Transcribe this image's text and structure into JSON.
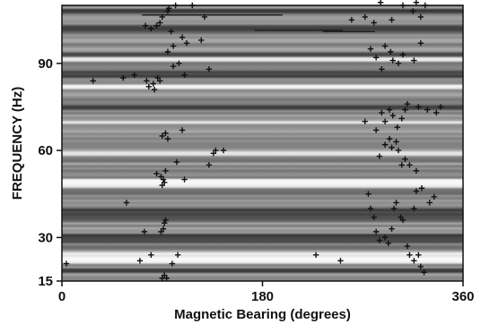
{
  "chart_data": {
    "type": "scatter",
    "xlabel": "Magnetic Bearing (degrees)",
    "ylabel": "FREQUENCY (Hz)",
    "xlim": [
      0,
      360
    ],
    "ylim": [
      15,
      110
    ],
    "xticks": [
      0,
      180,
      360
    ],
    "yticks": [
      15,
      30,
      60,
      90
    ],
    "xtick_labels": [
      "0",
      "180",
      "360"
    ],
    "ytick_labels": [
      "15",
      "30",
      "60",
      "90"
    ],
    "background": "grayscale frequency-bearing intensity (horizontal bands)",
    "grid": false,
    "marker": "plus",
    "marker_color": "#111111",
    "series": [
      {
        "values": [
          [
            4,
            21
          ],
          [
            58,
            42
          ],
          [
            70,
            22
          ],
          [
            74,
            32
          ],
          [
            80,
            24
          ],
          [
            90,
            16
          ],
          [
            92,
            17
          ],
          [
            94,
            16
          ],
          [
            99,
            21
          ],
          [
            104,
            24
          ],
          [
            89,
            32
          ],
          [
            91,
            33
          ],
          [
            92,
            35
          ],
          [
            93,
            36
          ],
          [
            90,
            48
          ],
          [
            92,
            49
          ],
          [
            89,
            51
          ],
          [
            91,
            50
          ],
          [
            85,
            52
          ],
          [
            93,
            53
          ],
          [
            103,
            56
          ],
          [
            110,
            50
          ],
          [
            132,
            55
          ],
          [
            136,
            59
          ],
          [
            138,
            60
          ],
          [
            145,
            60
          ],
          [
            90,
            65
          ],
          [
            93,
            66
          ],
          [
            95,
            64
          ],
          [
            108,
            67
          ],
          [
            28,
            84
          ],
          [
            55,
            85
          ],
          [
            65,
            86
          ],
          [
            76,
            84
          ],
          [
            78,
            82
          ],
          [
            82,
            83
          ],
          [
            83,
            81
          ],
          [
            86,
            85
          ],
          [
            88,
            84
          ],
          [
            100,
            89
          ],
          [
            105,
            90
          ],
          [
            110,
            86
          ],
          [
            132,
            88
          ],
          [
            95,
            94
          ],
          [
            100,
            96
          ],
          [
            108,
            99
          ],
          [
            112,
            97
          ],
          [
            125,
            98
          ],
          [
            98,
            101
          ],
          [
            75,
            103
          ],
          [
            85,
            103
          ],
          [
            88,
            104
          ],
          [
            90,
            106
          ],
          [
            95,
            108
          ],
          [
            80,
            102
          ],
          [
            96,
            109
          ],
          [
            102,
            110
          ],
          [
            117,
            110
          ],
          [
            128,
            106
          ],
          [
            228,
            24
          ],
          [
            250,
            22
          ],
          [
            275,
            45
          ],
          [
            277,
            40
          ],
          [
            280,
            37
          ],
          [
            282,
            32
          ],
          [
            285,
            29
          ],
          [
            290,
            30
          ],
          [
            293,
            28
          ],
          [
            296,
            33
          ],
          [
            298,
            40
          ],
          [
            300,
            42
          ],
          [
            304,
            37
          ],
          [
            306,
            36
          ],
          [
            310,
            27
          ],
          [
            312,
            24
          ],
          [
            316,
            22
          ],
          [
            320,
            24
          ],
          [
            322,
            20
          ],
          [
            325,
            18
          ],
          [
            316,
            40
          ],
          [
            318,
            46
          ],
          [
            323,
            47
          ],
          [
            330,
            42
          ],
          [
            334,
            44
          ],
          [
            285,
            58
          ],
          [
            290,
            62
          ],
          [
            294,
            64
          ],
          [
            296,
            61
          ],
          [
            300,
            63
          ],
          [
            302,
            60
          ],
          [
            305,
            55
          ],
          [
            308,
            57
          ],
          [
            312,
            55
          ],
          [
            318,
            53
          ],
          [
            272,
            70
          ],
          [
            282,
            67
          ],
          [
            287,
            73
          ],
          [
            290,
            70
          ],
          [
            294,
            74
          ],
          [
            297,
            72
          ],
          [
            301,
            68
          ],
          [
            305,
            71
          ],
          [
            308,
            74
          ],
          [
            310,
            76
          ],
          [
            320,
            75
          ],
          [
            328,
            74
          ],
          [
            336,
            73
          ],
          [
            340,
            75
          ],
          [
            277,
            95
          ],
          [
            282,
            92
          ],
          [
            287,
            88
          ],
          [
            290,
            96
          ],
          [
            295,
            94
          ],
          [
            297,
            91
          ],
          [
            302,
            90
          ],
          [
            306,
            93
          ],
          [
            316,
            91
          ],
          [
            322,
            97
          ],
          [
            260,
            105
          ],
          [
            272,
            106
          ],
          [
            280,
            104
          ],
          [
            286,
            111
          ],
          [
            296,
            105
          ],
          [
            306,
            110
          ],
          [
            315,
            108
          ],
          [
            318,
            111
          ],
          [
            322,
            106
          ],
          [
            326,
            110
          ]
        ]
      }
    ]
  }
}
